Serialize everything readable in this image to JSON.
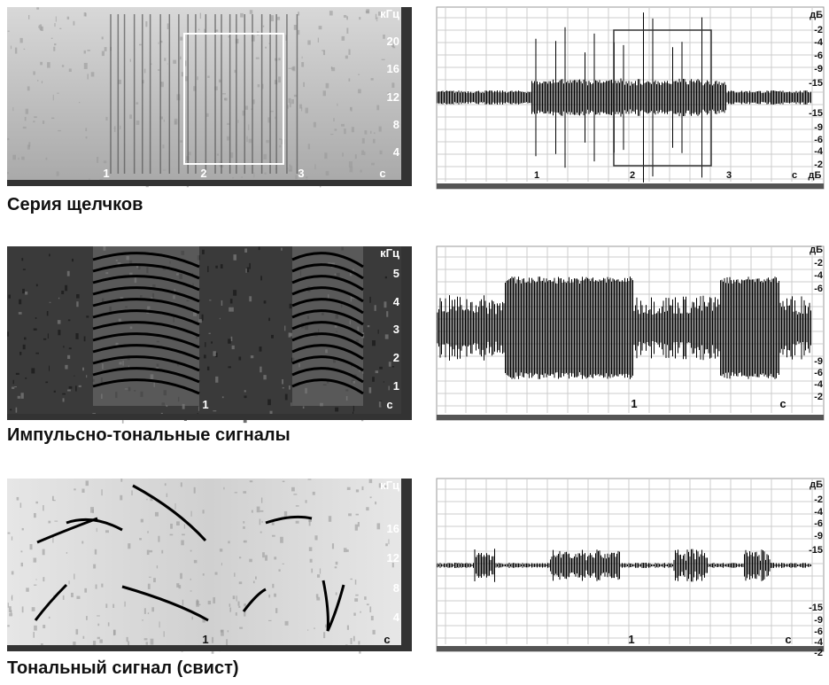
{
  "rows": [
    {
      "caption": "Серия щелчков",
      "spectrogram": {
        "unit": "кГц",
        "ticks": [
          "20",
          "16",
          "12",
          "8",
          "4"
        ],
        "time_labels": [
          "1",
          "2",
          "3",
          "с"
        ]
      },
      "waveform": {
        "unit": "дБ",
        "ticks": [
          "-2",
          "-4",
          "-6",
          "-9",
          "-15",
          "-15",
          "-9",
          "-6",
          "-4",
          "-2"
        ],
        "time_labels": [
          "1",
          "2",
          "3",
          "с",
          "дБ"
        ]
      }
    },
    {
      "caption": "Импульсно-тональные сигналы",
      "spectrogram": {
        "unit": "кГц",
        "ticks": [
          "5",
          "4",
          "3",
          "2",
          "1"
        ],
        "time_labels": [
          "1",
          "с"
        ]
      },
      "waveform": {
        "unit": "дБ",
        "ticks": [
          "-2",
          "-4",
          "-6",
          "-9",
          "-6",
          "-4",
          "-2"
        ],
        "time_labels": [
          "1",
          "с"
        ]
      }
    },
    {
      "caption": "Тональный сигнал (свист)",
      "spectrogram": {
        "unit": "кГц",
        "ticks": [
          "16",
          "12",
          "8",
          "4"
        ],
        "time_labels": [
          "1",
          "с"
        ]
      },
      "waveform": {
        "unit": "дБ",
        "ticks": [
          "-2",
          "-4",
          "-6",
          "-9",
          "-15",
          "-15",
          "-9",
          "-6",
          "-4",
          "-2"
        ],
        "time_labels": [
          "1",
          "с"
        ]
      }
    }
  ]
}
